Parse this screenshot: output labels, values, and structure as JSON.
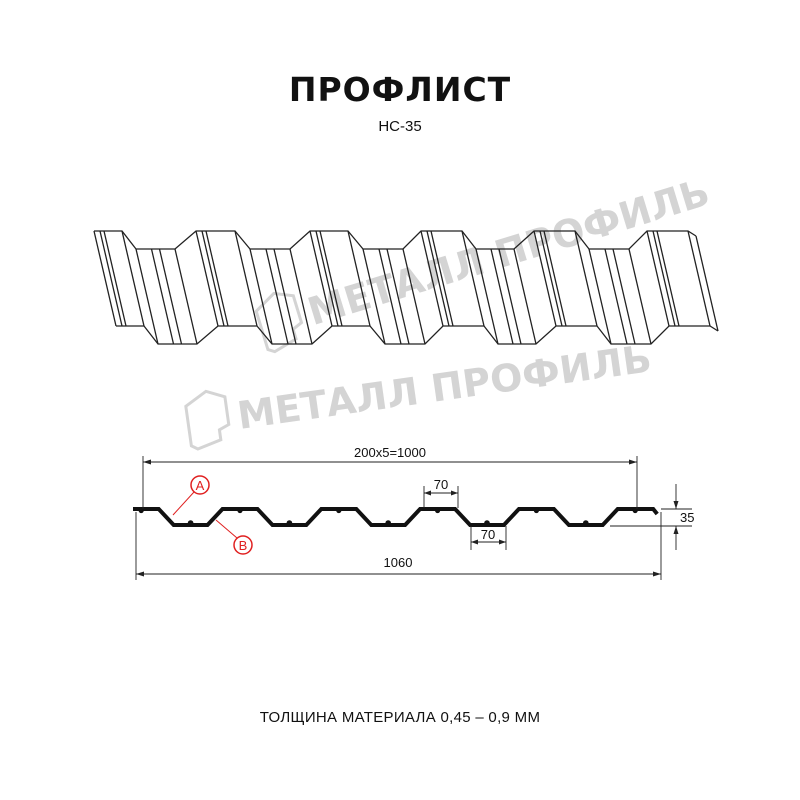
{
  "header": {
    "title": "ПРОФЛИСТ",
    "model": "НС-35"
  },
  "watermark": {
    "text": "МЕТАЛЛ ПРОФИЛЬ",
    "color": "#d4d4d4"
  },
  "dimensions": {
    "pitch": "200x5=1000",
    "top_rib_width": "70",
    "bottom_width": "70",
    "total_width": "1060",
    "height": "35"
  },
  "markers": {
    "a": "A",
    "b": "B",
    "color": "#e02020"
  },
  "footer": {
    "thickness": "ТОЛЩИНА МАТЕРИАЛА 0,45 – 0,9 ММ"
  }
}
